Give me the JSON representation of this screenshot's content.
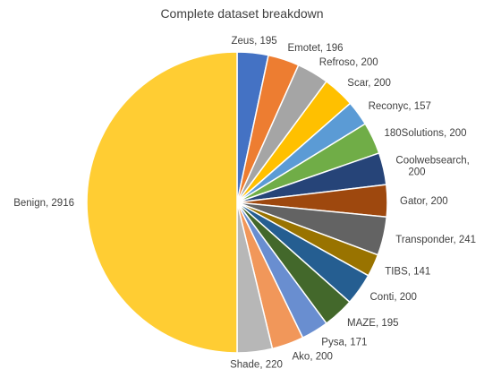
{
  "chart_data": {
    "type": "pie",
    "title": "Complete dataset breakdown",
    "start_angle_deg": 0,
    "direction": "clockwise",
    "legend": "none",
    "data_labels": "outside, category and value",
    "slices": [
      {
        "label": "Zeus",
        "value": 195,
        "display": "Zeus, 195",
        "color": "#4472C4"
      },
      {
        "label": "Emotet",
        "value": 196,
        "display": "Emotet, 196",
        "color": "#ED7D31"
      },
      {
        "label": "Refroso",
        "value": 200,
        "display": "Refroso, 200",
        "color": "#A5A5A5"
      },
      {
        "label": "Scar",
        "value": 200,
        "display": "Scar, 200",
        "color": "#FFC000"
      },
      {
        "label": "Reconyc",
        "value": 157,
        "display": "Reconyc, 157",
        "color": "#5B9BD5"
      },
      {
        "label": "180Solutions",
        "value": 200,
        "display": "180Solutions, 200",
        "color": "#70AD47"
      },
      {
        "label": "Coolwebsearch",
        "value": 200,
        "display": "Coolwebsearch,|200",
        "color": "#264478"
      },
      {
        "label": "Gator",
        "value": 200,
        "display": "Gator, 200",
        "color": "#9E480E"
      },
      {
        "label": "Transponder",
        "value": 241,
        "display": "Transponder, 241",
        "color": "#636363"
      },
      {
        "label": "TIBS",
        "value": 141,
        "display": "TIBS, 141",
        "color": "#997300"
      },
      {
        "label": "Conti",
        "value": 200,
        "display": "Conti, 200",
        "color": "#255E91"
      },
      {
        "label": "MAZE",
        "value": 195,
        "display": "MAZE, 195",
        "color": "#43682B"
      },
      {
        "label": "Pysa",
        "value": 171,
        "display": "Pysa, 171",
        "color": "#698ED0"
      },
      {
        "label": "Ako",
        "value": 200,
        "display": "Ako, 200",
        "color": "#F1975A"
      },
      {
        "label": "Shade",
        "value": 220,
        "display": "Shade, 220",
        "color": "#B7B7B7"
      },
      {
        "label": "Benign",
        "value": 2916,
        "display": "Benign, 2916",
        "color": "#FFCD33"
      }
    ]
  }
}
